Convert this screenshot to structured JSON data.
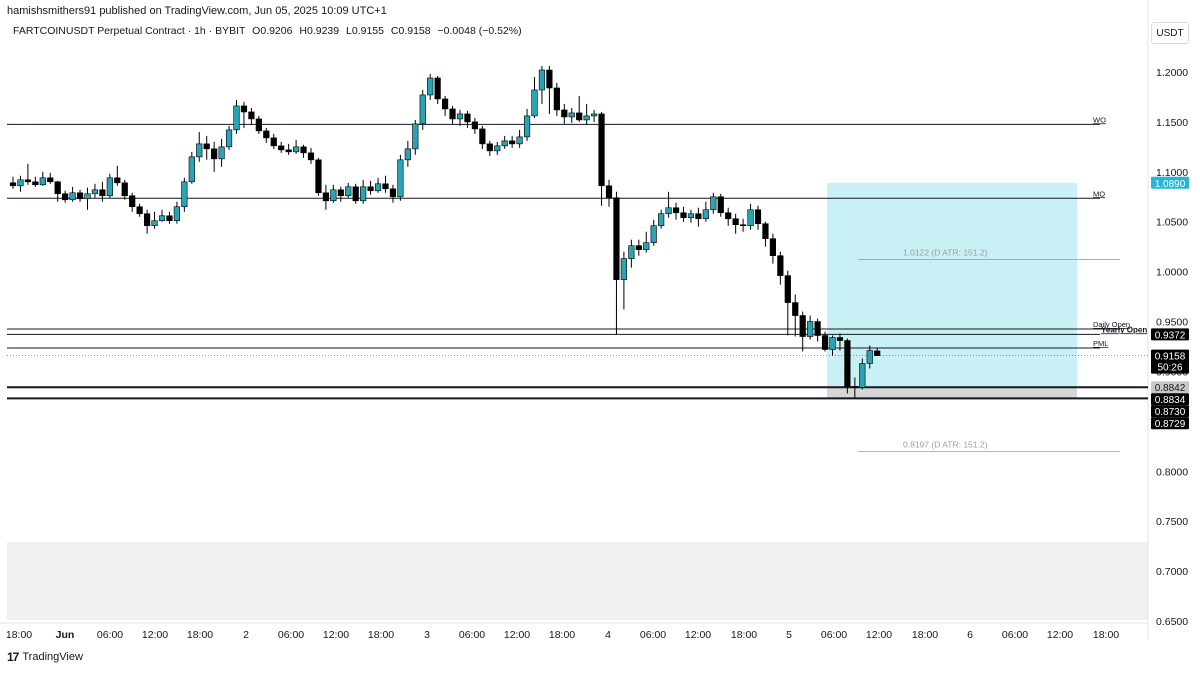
{
  "header": {
    "published": "hamishsmithers91 published on TradingView.com, Jun 05, 2025 10:09 UTC+1",
    "symbol": "FARTCOINUSDT Perpetual Contract · 1h · BYBIT",
    "open": "O0.9206",
    "high": "H0.9239",
    "low": "L0.9155",
    "close": "C0.9158",
    "change": "−0.0048 (−0.52%)"
  },
  "currency": "USDT",
  "footer": {
    "brand": "TradingView",
    "logo_glyph": "17"
  },
  "colors": {
    "up": "#26a69a",
    "up_fill": "#2ba3b5",
    "down": "#000000",
    "target_zone": "#c9f0f4",
    "stop_zone": "#d6d6d6",
    "level_line": "#131722"
  },
  "chart_data": {
    "type": "candlestick",
    "timeframe": "1h",
    "ylim": [
      0.65,
      1.225
    ],
    "y_ticks": [
      "1.2000",
      "1.1500",
      "1.1000",
      "1.0500",
      "1.0000",
      "0.9500",
      "0.9000",
      "0.8500",
      "0.8000",
      "0.7500",
      "0.7000",
      "0.6500"
    ],
    "x_ticks": [
      "18:00",
      "Jun",
      "06:00",
      "12:00",
      "18:00",
      "2",
      "06:00",
      "12:00",
      "18:00",
      "3",
      "06:00",
      "12:00",
      "18:00",
      "4",
      "06:00",
      "12:00",
      "18:00",
      "5",
      "06:00",
      "12:00",
      "18:00",
      "6",
      "06:00",
      "12:00",
      "18:00"
    ],
    "levels": [
      {
        "label": "WO",
        "value": 1.1475
      },
      {
        "label": "MO",
        "value": 1.0735
      },
      {
        "label": "Daily Open",
        "value": 0.9425
      },
      {
        "label": "Yearly Open",
        "value": 0.9372
      },
      {
        "label": "PML",
        "value": 0.9235
      },
      {
        "label": "",
        "value": 0.8842
      },
      {
        "label": "",
        "value": 0.873
      }
    ],
    "atr_levels": [
      {
        "label": "1.0122 (D ATR: 151.2)",
        "value": 1.0122
      },
      {
        "label": "0.8197 (D ATR: 151.2)",
        "value": 0.8197
      }
    ],
    "price_badges": [
      {
        "text": "1.0890",
        "value": 1.089,
        "style": "teal"
      },
      {
        "text": "0.9372",
        "value": 0.9372,
        "style": "dark"
      },
      {
        "text": "0.9158",
        "value": 0.9158,
        "style": "dark",
        "sub": "50:26"
      },
      {
        "text": "0.8842",
        "value": 0.8842,
        "style": "grey"
      },
      {
        "text": "0.8834",
        "value": 0.8834,
        "style": "dark"
      },
      {
        "text": "0.8730",
        "value": 0.873,
        "style": "dark"
      },
      {
        "text": "0.8729",
        "value": 0.8729,
        "style": "dark"
      }
    ],
    "target_zone": [
      0.8842,
      1.089
    ],
    "stop_zone": [
      0.873,
      0.8842
    ],
    "current_price": 0.9158,
    "candles": [
      [
        1.089,
        1.086,
        1.095,
        1.083
      ],
      [
        1.086,
        1.092,
        1.096,
        1.08
      ],
      [
        1.092,
        1.09,
        1.108,
        1.087
      ],
      [
        1.09,
        1.087,
        1.095,
        1.085
      ],
      [
        1.087,
        1.094,
        1.1,
        1.086
      ],
      [
        1.094,
        1.09,
        1.099,
        1.088
      ],
      [
        1.09,
        1.078,
        1.091,
        1.07
      ],
      [
        1.078,
        1.072,
        1.081,
        1.069
      ],
      [
        1.072,
        1.079,
        1.085,
        1.07
      ],
      [
        1.079,
        1.073,
        1.082,
        1.07
      ],
      [
        1.073,
        1.078,
        1.084,
        1.062
      ],
      [
        1.078,
        1.082,
        1.088,
        1.074
      ],
      [
        1.082,
        1.076,
        1.09,
        1.07
      ],
      [
        1.076,
        1.094,
        1.098,
        1.074
      ],
      [
        1.094,
        1.089,
        1.106,
        1.086
      ],
      [
        1.089,
        1.076,
        1.092,
        1.072
      ],
      [
        1.076,
        1.065,
        1.079,
        1.06
      ],
      [
        1.065,
        1.058,
        1.068,
        1.055
      ],
      [
        1.058,
        1.046,
        1.062,
        1.038
      ],
      [
        1.046,
        1.051,
        1.06,
        1.043
      ],
      [
        1.051,
        1.056,
        1.062,
        1.05
      ],
      [
        1.056,
        1.051,
        1.06,
        1.048
      ],
      [
        1.051,
        1.065,
        1.07,
        1.048
      ],
      [
        1.065,
        1.09,
        1.094,
        1.06
      ],
      [
        1.09,
        1.115,
        1.12,
        1.088
      ],
      [
        1.115,
        1.128,
        1.14,
        1.11
      ],
      [
        1.128,
        1.123,
        1.136,
        1.112
      ],
      [
        1.123,
        1.113,
        1.13,
        1.1
      ],
      [
        1.113,
        1.125,
        1.133,
        1.105
      ],
      [
        1.125,
        1.142,
        1.146,
        1.122
      ],
      [
        1.142,
        1.166,
        1.172,
        1.138
      ],
      [
        1.166,
        1.16,
        1.17,
        1.144
      ],
      [
        1.16,
        1.153,
        1.164,
        1.147
      ],
      [
        1.153,
        1.141,
        1.156,
        1.138
      ],
      [
        1.141,
        1.134,
        1.144,
        1.129
      ],
      [
        1.134,
        1.126,
        1.138,
        1.123
      ],
      [
        1.126,
        1.122,
        1.13,
        1.119
      ],
      [
        1.122,
        1.12,
        1.128,
        1.117
      ],
      [
        1.12,
        1.125,
        1.132,
        1.118
      ],
      [
        1.125,
        1.119,
        1.127,
        1.114
      ],
      [
        1.119,
        1.112,
        1.124,
        1.108
      ],
      [
        1.112,
        1.079,
        1.114,
        1.076
      ],
      [
        1.079,
        1.071,
        1.087,
        1.062
      ],
      [
        1.071,
        1.082,
        1.087,
        1.069
      ],
      [
        1.082,
        1.076,
        1.085,
        1.07
      ],
      [
        1.076,
        1.085,
        1.089,
        1.074
      ],
      [
        1.085,
        1.071,
        1.088,
        1.068
      ],
      [
        1.071,
        1.085,
        1.092,
        1.068
      ],
      [
        1.085,
        1.081,
        1.091,
        1.077
      ],
      [
        1.081,
        1.088,
        1.094,
        1.079
      ],
      [
        1.088,
        1.083,
        1.096,
        1.079
      ],
      [
        1.083,
        1.075,
        1.087,
        1.069
      ],
      [
        1.075,
        1.112,
        1.117,
        1.071
      ],
      [
        1.112,
        1.123,
        1.131,
        1.105
      ],
      [
        1.123,
        1.148,
        1.152,
        1.117
      ],
      [
        1.148,
        1.177,
        1.182,
        1.142
      ],
      [
        1.177,
        1.194,
        1.198,
        1.172
      ],
      [
        1.194,
        1.173,
        1.196,
        1.168
      ],
      [
        1.173,
        1.163,
        1.176,
        1.156
      ],
      [
        1.163,
        1.153,
        1.166,
        1.148
      ],
      [
        1.153,
        1.158,
        1.162,
        1.146
      ],
      [
        1.158,
        1.15,
        1.161,
        1.144
      ],
      [
        1.15,
        1.143,
        1.154,
        1.138
      ],
      [
        1.143,
        1.128,
        1.146,
        1.123
      ],
      [
        1.128,
        1.121,
        1.131,
        1.116
      ],
      [
        1.121,
        1.126,
        1.13,
        1.117
      ],
      [
        1.126,
        1.131,
        1.136,
        1.123
      ],
      [
        1.131,
        1.128,
        1.136,
        1.124
      ],
      [
        1.128,
        1.135,
        1.142,
        1.124
      ],
      [
        1.135,
        1.156,
        1.163,
        1.131
      ],
      [
        1.156,
        1.182,
        1.195,
        1.154
      ],
      [
        1.182,
        1.202,
        1.206,
        1.168
      ],
      [
        1.202,
        1.184,
        1.206,
        1.158
      ],
      [
        1.184,
        1.162,
        1.189,
        1.156
      ],
      [
        1.162,
        1.155,
        1.168,
        1.148
      ],
      [
        1.155,
        1.159,
        1.164,
        1.149
      ],
      [
        1.159,
        1.152,
        1.176,
        1.15
      ],
      [
        1.152,
        1.156,
        1.168,
        1.147
      ],
      [
        1.156,
        1.158,
        1.162,
        1.15
      ],
      [
        1.158,
        1.086,
        1.16,
        1.066
      ],
      [
        1.086,
        1.074,
        1.092,
        1.065
      ],
      [
        1.074,
        0.992,
        1.08,
        0.937
      ],
      [
        0.992,
        1.013,
        1.02,
        0.962
      ],
      [
        1.013,
        1.026,
        1.032,
        1.004
      ],
      [
        1.026,
        1.022,
        1.032,
        1.016
      ],
      [
        1.022,
        1.029,
        1.04,
        1.019
      ],
      [
        1.029,
        1.046,
        1.052,
        1.026
      ],
      [
        1.046,
        1.058,
        1.062,
        1.043
      ],
      [
        1.058,
        1.064,
        1.08,
        1.054
      ],
      [
        1.064,
        1.059,
        1.069,
        1.052
      ],
      [
        1.059,
        1.054,
        1.065,
        1.05
      ],
      [
        1.054,
        1.058,
        1.062,
        1.049
      ],
      [
        1.058,
        1.053,
        1.064,
        1.045
      ],
      [
        1.053,
        1.062,
        1.07,
        1.05
      ],
      [
        1.062,
        1.075,
        1.079,
        1.058
      ],
      [
        1.075,
        1.059,
        1.078,
        1.055
      ],
      [
        1.059,
        1.053,
        1.064,
        1.046
      ],
      [
        1.053,
        1.047,
        1.058,
        1.038
      ],
      [
        1.047,
        1.046,
        1.053,
        1.04
      ],
      [
        1.046,
        1.062,
        1.068,
        1.042
      ],
      [
        1.062,
        1.048,
        1.066,
        1.042
      ],
      [
        1.048,
        1.033,
        1.05,
        1.025
      ],
      [
        1.033,
        1.016,
        1.038,
        1.008
      ],
      [
        1.016,
        0.996,
        1.02,
        0.987
      ],
      [
        0.996,
        0.969,
        1.001,
        0.936
      ],
      [
        0.969,
        0.956,
        0.977,
        0.935
      ],
      [
        0.956,
        0.935,
        0.96,
        0.92
      ],
      [
        0.935,
        0.95,
        0.956,
        0.932
      ],
      [
        0.95,
        0.936,
        0.953,
        0.93
      ],
      [
        0.936,
        0.922,
        0.94,
        0.92
      ],
      [
        0.922,
        0.934,
        0.936,
        0.916
      ],
      [
        0.934,
        0.931,
        0.938,
        0.921
      ],
      [
        0.931,
        0.885,
        0.933,
        0.878
      ],
      [
        0.885,
        0.884,
        0.894,
        0.873
      ],
      [
        0.884,
        0.908,
        0.913,
        0.882
      ],
      [
        0.908,
        0.921,
        0.926,
        0.903
      ],
      [
        0.9206,
        0.9158,
        0.9239,
        0.9155
      ]
    ],
    "x_index_first_tick": 0
  }
}
